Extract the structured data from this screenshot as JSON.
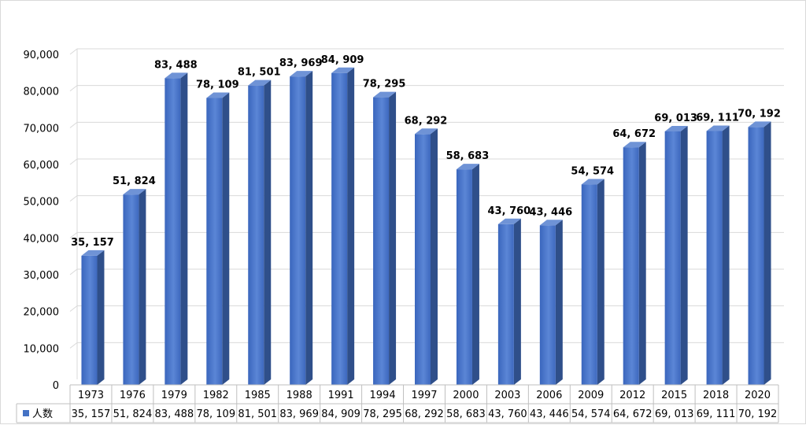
{
  "chart_data": {
    "type": "bar",
    "categories": [
      "1973",
      "1976",
      "1979",
      "1982",
      "1985",
      "1988",
      "1991",
      "1994",
      "1997",
      "2000",
      "2003",
      "2006",
      "2009",
      "2012",
      "2015",
      "2018",
      "2020"
    ],
    "series": [
      {
        "name": "人数",
        "values": [
          35157,
          51824,
          83488,
          78109,
          81501,
          83969,
          84909,
          78295,
          68292,
          58683,
          43760,
          43446,
          54574,
          64672,
          69013,
          69111,
          70192
        ],
        "data_labels": [
          "35, 157",
          "51, 824",
          "83, 488",
          "78, 109",
          "81, 501",
          "83, 969",
          "84, 909",
          "78, 295",
          "68, 292",
          "58, 683",
          "43, 760",
          "43, 446",
          "54, 574",
          "64, 672",
          "69, 013",
          "69, 111",
          "70, 192"
        ]
      }
    ],
    "ylim": [
      0,
      90000
    ],
    "y_ticks": [
      0,
      10000,
      20000,
      30000,
      40000,
      50000,
      60000,
      70000,
      80000,
      90000
    ],
    "y_tick_labels": [
      "0",
      "10,000",
      "20,000",
      "30,000",
      "40,000",
      "50,000",
      "60,000",
      "70,000",
      "80,000",
      "90,000"
    ],
    "title": "",
    "xlabel": "",
    "ylabel": "",
    "grid": true,
    "data_table": true,
    "bar_style": "3d",
    "colors": {
      "bar_front": "#4472c4",
      "bar_side": "#2f4f8a",
      "bar_top": "#6f93d6",
      "gridline": "#d9d9d9",
      "legend_key": "#4472c4"
    }
  }
}
